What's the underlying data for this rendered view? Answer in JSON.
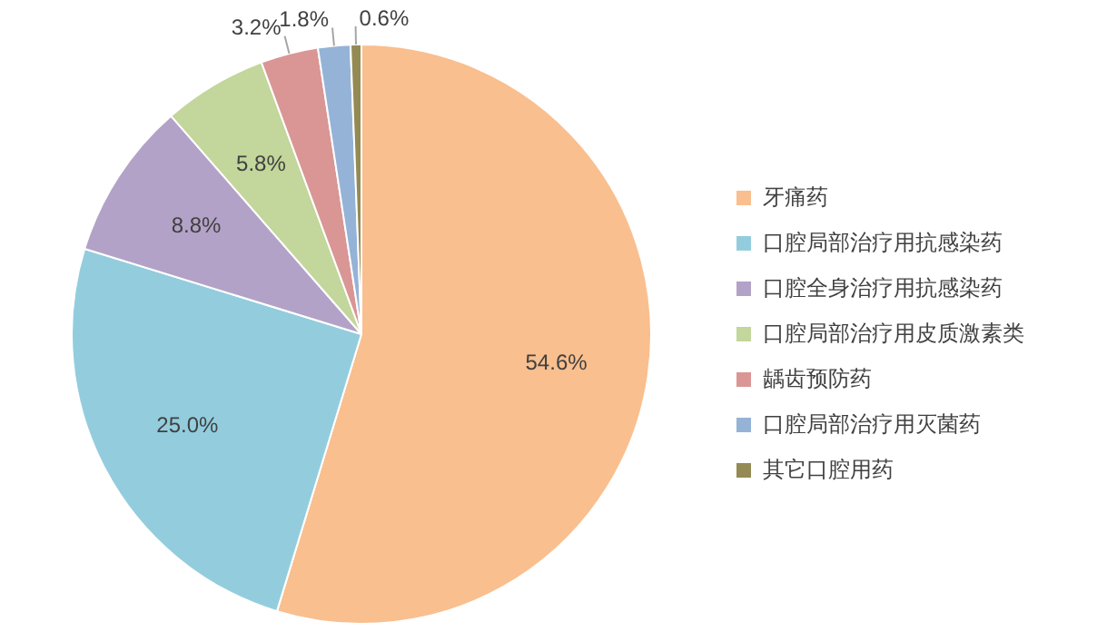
{
  "chart_data": {
    "type": "pie",
    "categories": [
      "牙痛药",
      "口腔局部治疗用抗感染药",
      "口腔全身治疗用抗感染药",
      "口腔局部治疗用皮质激素类",
      "龋齿预防药",
      "口腔局部治疗用灭菌药",
      "其它口腔用药"
    ],
    "values": [
      54.6,
      25.0,
      8.8,
      5.8,
      3.2,
      1.8,
      0.6
    ],
    "value_labels": [
      "54.6%",
      "25.0%",
      "8.8%",
      "5.8%",
      "3.2%",
      "1.8%",
      "0.6%"
    ],
    "colors": [
      "#f9bf8f",
      "#93cddd",
      "#b3a2c7",
      "#c3d69b",
      "#d99694",
      "#95b3d7",
      "#948a54"
    ],
    "legend": "right"
  }
}
